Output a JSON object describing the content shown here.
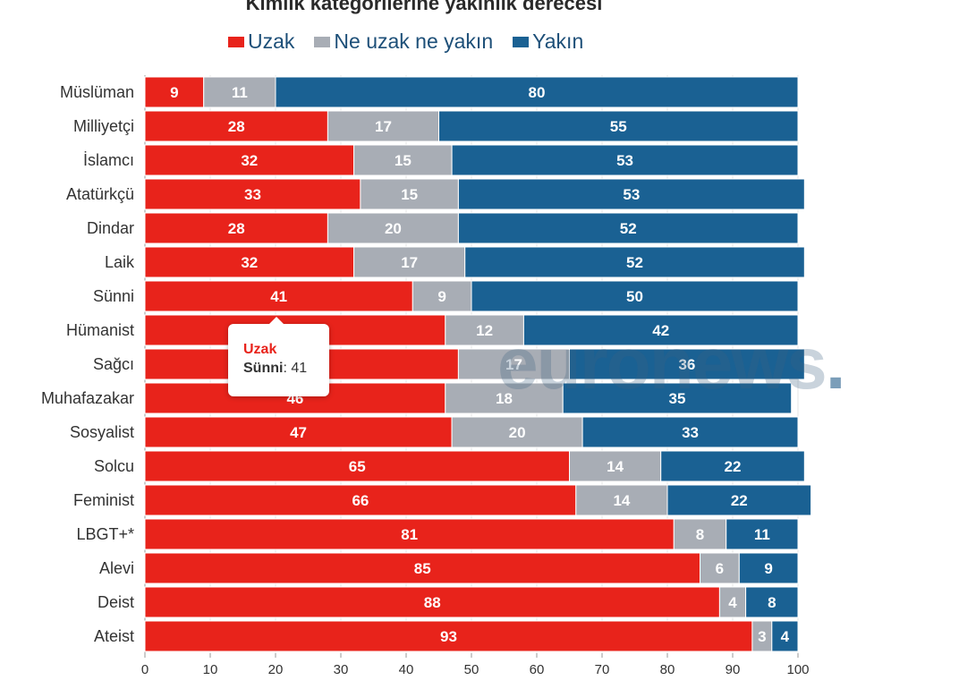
{
  "chart_data": {
    "type": "bar",
    "orientation": "horizontal",
    "stacked": true,
    "title": "Kimlik kategorilerine yakınlık derecesi",
    "xlim": [
      0,
      100
    ],
    "xticks": [
      0,
      10,
      20,
      30,
      40,
      50,
      60,
      70,
      80,
      90,
      100
    ],
    "categories": [
      "Müslüman",
      "Milliyetçi",
      "İslamcı",
      "Atatürkçü",
      "Dindar",
      "Laik",
      "Sünni",
      "Hümanist",
      "Sağcı",
      "Muhafazakar",
      "Sosyalist",
      "Solcu",
      "Feminist",
      "LBGT+*",
      "Alevi",
      "Deist",
      "Ateist"
    ],
    "series": [
      {
        "name": "Uzak",
        "color": "#e8231b",
        "values": [
          9,
          28,
          32,
          33,
          28,
          32,
          41,
          46,
          48,
          46,
          47,
          65,
          66,
          81,
          85,
          88,
          93
        ]
      },
      {
        "name": "Ne uzak ne yakın",
        "color": "#a8adb5",
        "values": [
          11,
          17,
          15,
          15,
          20,
          17,
          9,
          12,
          17,
          18,
          20,
          14,
          14,
          8,
          6,
          4,
          3
        ]
      },
      {
        "name": "Yakın",
        "color": "#1a6193",
        "values": [
          80,
          55,
          53,
          53,
          52,
          52,
          50,
          42,
          36,
          35,
          33,
          22,
          22,
          11,
          9,
          8,
          4
        ]
      }
    ],
    "legend": "top",
    "grid": true
  },
  "tooltip": {
    "series": "Uzak",
    "category": "Sünni",
    "separator": ":",
    "value": "41"
  },
  "watermark": {
    "text": "euronews",
    "dot": "."
  }
}
